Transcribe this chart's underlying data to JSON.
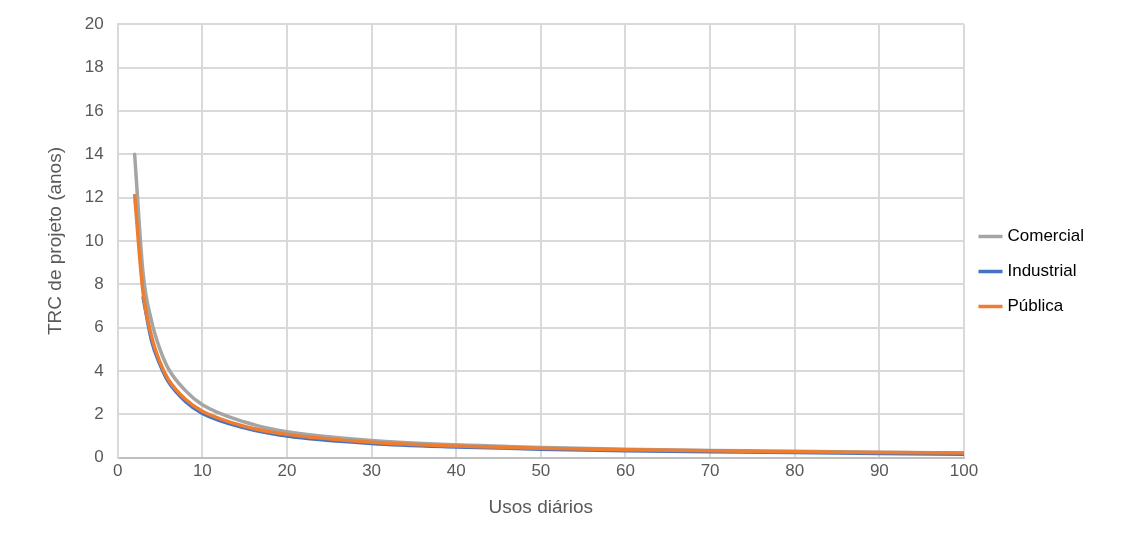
{
  "chart_data": {
    "type": "line",
    "xlabel": "Usos diários",
    "ylabel": "TRC de projeto (anos)",
    "xlim": [
      0,
      100
    ],
    "xticks": [
      0,
      10,
      20,
      30,
      40,
      50,
      60,
      70,
      80,
      90,
      100
    ],
    "ylim": [
      0,
      20
    ],
    "yticks": [
      0,
      2,
      4,
      6,
      8,
      10,
      12,
      14,
      16,
      18,
      20
    ],
    "grid": true,
    "legend": "right",
    "marker": "none",
    "line_style": "solid",
    "x": [
      2,
      3,
      4,
      5,
      6,
      8,
      10,
      15,
      20,
      30,
      40,
      50,
      60,
      70,
      80,
      90,
      100
    ],
    "series": [
      {
        "name": "Comercial",
        "color": "#a5a5a5",
        "values": [
          14,
          8.5,
          6.3,
          5.0,
          4.1,
          3.1,
          2.45,
          1.65,
          1.2,
          0.8,
          0.6,
          0.48,
          0.4,
          0.34,
          0.3,
          0.26,
          0.22
        ]
      },
      {
        "name": "Industrial",
        "color": "#4472c4",
        "values": [
          null,
          7.4,
          5.4,
          4.3,
          3.5,
          2.6,
          2.05,
          1.38,
          1.0,
          0.66,
          0.5,
          0.4,
          0.33,
          0.28,
          0.24,
          0.2,
          0.16
        ]
      },
      {
        "name": "Pública",
        "color": "#ed7d31",
        "values": [
          12.1,
          7.6,
          5.6,
          4.4,
          3.6,
          2.7,
          2.15,
          1.45,
          1.08,
          0.72,
          0.54,
          0.44,
          0.37,
          0.32,
          0.28,
          0.25,
          0.22
        ]
      }
    ]
  }
}
